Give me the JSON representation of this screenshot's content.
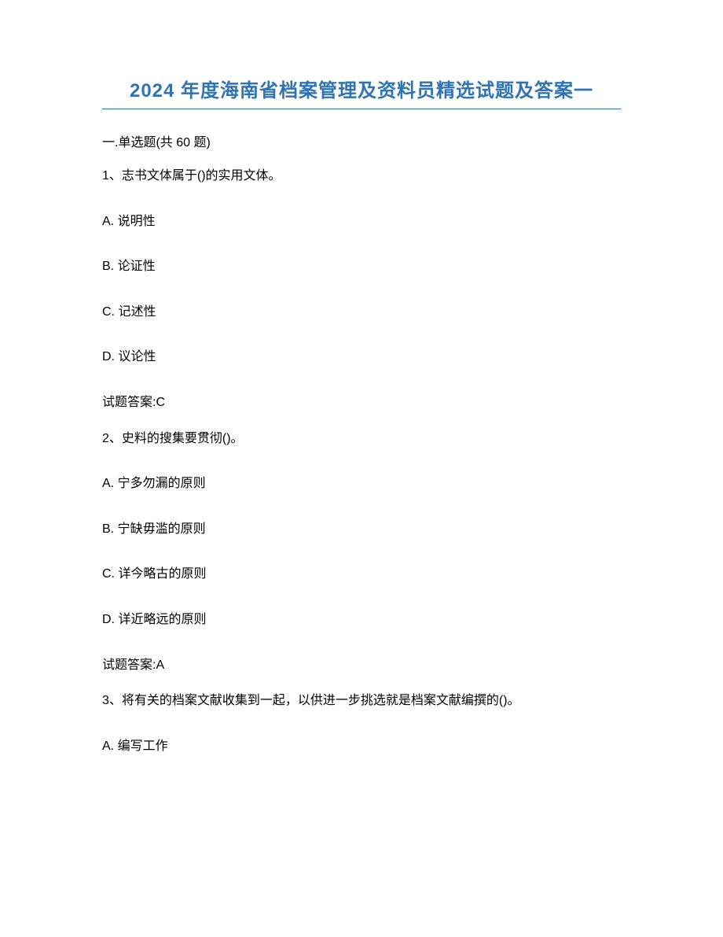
{
  "title": "2024 年度海南省档案管理及资料员精选试题及答案一",
  "section_header": "一.单选题(共 60 题)",
  "questions": [
    {
      "stem": "1、志书文体属于()的实用文体。",
      "options": {
        "a": "A. 说明性",
        "b": "B. 论证性",
        "c": "C. 记述性",
        "d": "D. 议论性"
      },
      "answer": "试题答案:C"
    },
    {
      "stem": "2、史料的搜集要贯彻()。",
      "options": {
        "a": "A. 宁多勿漏的原则",
        "b": "B. 宁缺毋滥的原则",
        "c": "C. 详今略古的原则",
        "d": "D. 详近略远的原则"
      },
      "answer": "试题答案:A"
    },
    {
      "stem": "3、将有关的档案文献收集到一起，以供进一步挑选就是档案文献编撰的()。",
      "options": {
        "a": "A. 编写工作"
      }
    }
  ],
  "colors": {
    "title_color": "#2e74b5",
    "text_color": "#000000",
    "background": "#ffffff",
    "divider": "#2e74b5"
  },
  "typography": {
    "title_fontsize": 24,
    "body_fontsize": 16,
    "title_weight": "bold"
  }
}
